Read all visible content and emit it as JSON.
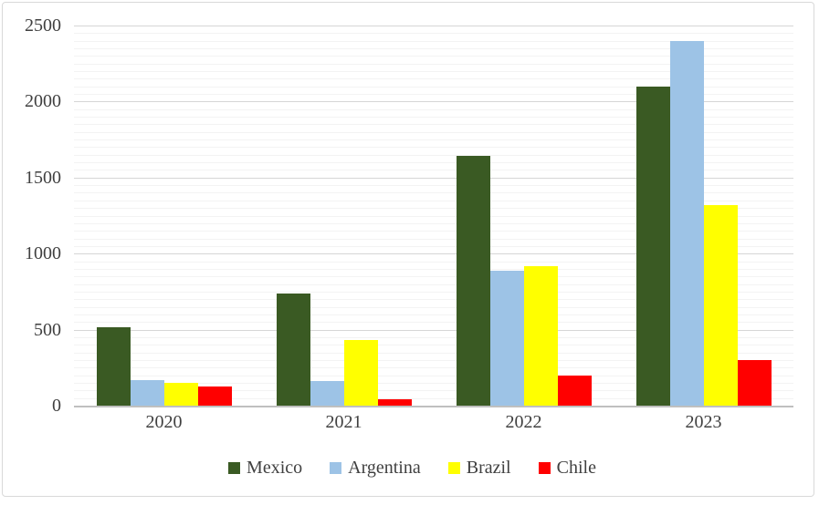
{
  "chart_data": {
    "type": "bar",
    "title": "",
    "xlabel": "",
    "ylabel": "",
    "categories": [
      "2020",
      "2021",
      "2022",
      "2023"
    ],
    "series": [
      {
        "name": "Mexico",
        "color": "#3A5A23",
        "values": [
          515,
          735,
          1645,
          2100
        ]
      },
      {
        "name": "Argentina",
        "color": "#9DC3E6",
        "values": [
          165,
          160,
          890,
          2400
        ]
      },
      {
        "name": "Brazil",
        "color": "#FFFF00",
        "values": [
          150,
          430,
          920,
          1320
        ]
      },
      {
        "name": "Chile",
        "color": "#FF0000",
        "values": [
          125,
          40,
          200,
          300
        ]
      }
    ],
    "ylim": [
      0,
      2500
    ],
    "ytick_step": 500,
    "ytick_labels": [
      "0",
      "500",
      "1000",
      "1500",
      "2000",
      "2500"
    ],
    "minor_gridline_step": 50,
    "grid": "on",
    "legend_position": "bottom",
    "style": {
      "text_color": "#404040",
      "major_gridline_color": "#d6d6d6",
      "minor_gridline_color": "#f3f3f3",
      "axis_line_color": "#bfbfbf",
      "frame_border_color": "#d9d9d9",
      "background": "#ffffff"
    }
  }
}
